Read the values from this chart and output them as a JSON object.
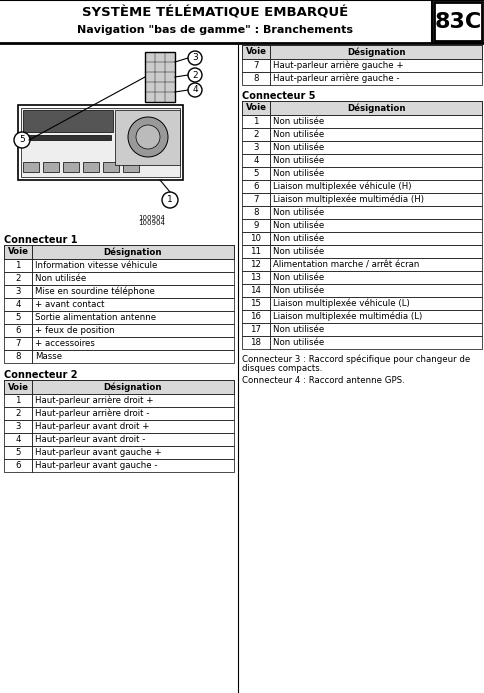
{
  "title_line1": "SYSTÈME TÉLÉMATIQUE EMBARQUÉ",
  "title_line2": "Navigation \"bas de gamme\" : Branchements",
  "page_number": "83C",
  "conn1_label": "Connecteur 1",
  "conn1_headers": [
    "Voie",
    "Désignation"
  ],
  "conn1_rows": [
    [
      "1",
      "Information vitesse véhicule"
    ],
    [
      "2",
      "Non utilisée"
    ],
    [
      "3",
      "Mise en sourdine téléphone"
    ],
    [
      "4",
      "+ avant contact"
    ],
    [
      "5",
      "Sortie alimentation antenne"
    ],
    [
      "6",
      "+ feux de position"
    ],
    [
      "7",
      "+ accessoires"
    ],
    [
      "8",
      "Masse"
    ]
  ],
  "conn2_label": "Connecteur 2",
  "conn2_headers": [
    "Voie",
    "Désignation"
  ],
  "conn2_rows": [
    [
      "1",
      "Haut-parleur arrière droit +"
    ],
    [
      "2",
      "Haut-parleur arrière droit -"
    ],
    [
      "3",
      "Haut-parleur avant droit +"
    ],
    [
      "4",
      "Haut-parleur avant droit -"
    ],
    [
      "5",
      "Haut-parleur avant gauche +"
    ],
    [
      "6",
      "Haut-parleur avant gauche -"
    ]
  ],
  "conn_right_rows_above": [
    [
      "7",
      "Haut-parleur arrière gauche +"
    ],
    [
      "8",
      "Haut-parleur arrière gauche -"
    ]
  ],
  "conn5_label": "Connecteur 5",
  "conn5_headers": [
    "Voie",
    "Désignation"
  ],
  "conn5_rows": [
    [
      "1",
      "Non utilisée"
    ],
    [
      "2",
      "Non utilisée"
    ],
    [
      "3",
      "Non utilisée"
    ],
    [
      "4",
      "Non utilisée"
    ],
    [
      "5",
      "Non utilisée"
    ],
    [
      "6",
      "Liaison multiplexée véhicule (H)"
    ],
    [
      "7",
      "Liaison multiplexée multimédia (H)"
    ],
    [
      "8",
      "Non utilisée"
    ],
    [
      "9",
      "Non utilisée"
    ],
    [
      "10",
      "Non utilisée"
    ],
    [
      "11",
      "Non utilisée"
    ],
    [
      "12",
      "Alimentation marche / arrêt écran"
    ],
    [
      "13",
      "Non utilisée"
    ],
    [
      "14",
      "Non utilisée"
    ],
    [
      "15",
      "Liaison multiplexée véhicule (L)"
    ],
    [
      "16",
      "Liaison multiplexée multimédia (L)"
    ],
    [
      "17",
      "Non utilisée"
    ],
    [
      "18",
      "Non utilisée"
    ]
  ],
  "conn3_note_line1": "Connecteur 3 : Raccord spécifique pour changeur de",
  "conn3_note_line2": "disques compacts.",
  "conn4_note": "Connecteur 4 : Raccord antenne GPS.",
  "image_ref1": "100904",
  "image_ref2": "100904"
}
